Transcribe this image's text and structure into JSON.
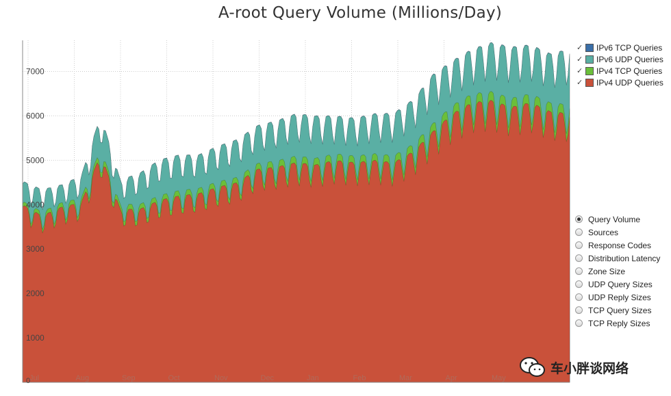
{
  "chart_data": {
    "type": "area",
    "stacked": true,
    "title": "A-root Query Volume (Millions/Day)",
    "xlabel": "",
    "ylabel": "",
    "ylim": [
      0,
      7700
    ],
    "yticks": [
      1000,
      2000,
      3000,
      4000,
      5000,
      6000,
      7000
    ],
    "x_tick_labels": [
      "Jul",
      "Aug",
      "Sep",
      "Oct",
      "Nov",
      "Dec",
      "Jan",
      "Feb",
      "Mar",
      "Apr",
      "May"
    ],
    "series": [
      {
        "name": "IPv4 UDP Queries",
        "color": "#c9513a",
        "values": [
          4000,
          3750,
          3950,
          4050,
          5150,
          3900,
          3900,
          4100,
          4200,
          4250,
          4400,
          4500,
          4800,
          4850,
          4950,
          4900,
          5000,
          4950,
          5000,
          4950,
          5200,
          5650,
          6050,
          6300,
          6350,
          6200,
          6300,
          6100,
          6050
        ]
      },
      {
        "name": "IPv4 TCP Queries",
        "color": "#6bbf3a",
        "values": [
          80,
          90,
          100,
          100,
          120,
          110,
          110,
          110,
          120,
          120,
          120,
          120,
          130,
          140,
          150,
          150,
          150,
          150,
          150,
          160,
          170,
          180,
          190,
          200,
          200,
          200,
          200,
          200,
          200
        ]
      },
      {
        "name": "IPv6 UDP Queries",
        "color": "#5aafa4",
        "values": [
          450,
          500,
          400,
          500,
          750,
          550,
          700,
          800,
          800,
          750,
          800,
          850,
          850,
          900,
          950,
          950,
          850,
          850,
          900,
          950,
          1000,
          1100,
          1000,
          1000,
          1100,
          1150,
          1100,
          1100,
          1250
        ]
      },
      {
        "name": "IPv6 TCP Queries",
        "color": "#3a6fa8",
        "values": [
          2,
          2,
          2,
          2,
          3,
          3,
          3,
          3,
          3,
          3,
          3,
          3,
          3,
          3,
          4,
          4,
          4,
          4,
          4,
          4,
          4,
          5,
          5,
          5,
          5,
          5,
          5,
          5,
          5
        ]
      }
    ],
    "legend_position": "right",
    "grid": true
  },
  "legend": {
    "items": [
      {
        "label": "IPv6 TCP Queries",
        "color": "#3a6fa8",
        "check": "✓"
      },
      {
        "label": "IPv6 UDP Queries",
        "color": "#5aafa4",
        "check": "✓"
      },
      {
        "label": "IPv4 TCP Queries",
        "color": "#6bbf3a",
        "check": "✓"
      },
      {
        "label": "IPv4 UDP Queries",
        "color": "#c9513a",
        "check": "✓"
      }
    ]
  },
  "views": {
    "selected": "Query Volume",
    "options": [
      "Query Volume",
      "Sources",
      "Response Codes",
      "Distribution Latency",
      "Zone Size",
      "UDP Query Sizes",
      "UDP Reply Sizes",
      "TCP Query Sizes",
      "TCP Reply Sizes"
    ]
  },
  "watermark": {
    "text": "车小胖谈网络"
  }
}
